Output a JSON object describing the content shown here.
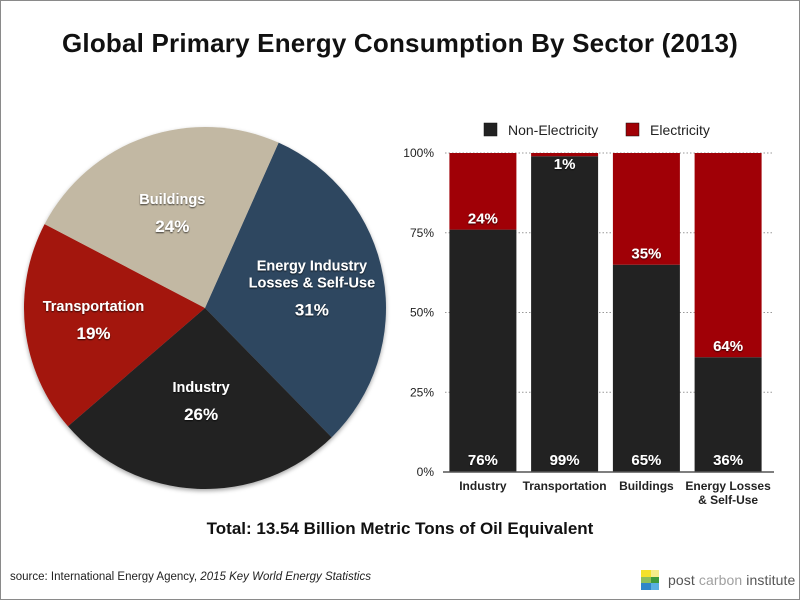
{
  "title": "Global Primary Energy Consumption By Sector (2013)",
  "total": "Total: 13.54 Billion Metric Tons of Oil Equivalent",
  "source": {
    "prefix": "source: International Energy Agency, ",
    "publication": "2015 Key World Energy Statistics"
  },
  "logo": {
    "icon": "post-carbon-logo-icon",
    "word1": "post ",
    "word2": "carbon",
    "word3": " institute"
  },
  "chart_data": [
    {
      "type": "pie",
      "title": "",
      "slices": [
        {
          "label": "Energy Industry Losses & Self-Use",
          "label_lines": [
            "Energy Industry",
            "Losses & Self-Use"
          ],
          "value": 31,
          "display": "31%",
          "color": "#2f4760"
        },
        {
          "label": "Industry",
          "label_lines": [
            "Industry"
          ],
          "value": 26,
          "display": "26%",
          "color": "#242424"
        },
        {
          "label": "Transportation",
          "label_lines": [
            "Transportation"
          ],
          "value": 19,
          "display": "19%",
          "color": "#a3130c"
        },
        {
          "label": "Buildings",
          "label_lines": [
            "Buildings"
          ],
          "value": 24,
          "display": "24%",
          "color": "#c2b8a3"
        }
      ],
      "start_angle_deg": 24,
      "direction": "clockwise",
      "unit": "%"
    },
    {
      "type": "bar",
      "stacked": true,
      "percent_stacked": true,
      "categories": [
        "Industry",
        "Transportation",
        "Buildings",
        "Energy Losses & Self-Use"
      ],
      "category_lines": [
        [
          "Industry"
        ],
        [
          "Transportation"
        ],
        [
          "Buildings"
        ],
        [
          "Energy Losses",
          "& Self-Use"
        ]
      ],
      "series": [
        {
          "name": "Non-Electricity",
          "values": [
            76,
            99,
            65,
            36
          ],
          "color": "#222222"
        },
        {
          "name": "Electricity",
          "values": [
            24,
            1,
            35,
            64
          ],
          "color": "#a00006"
        }
      ],
      "xlabel": "",
      "ylabel": "",
      "ylim": [
        0,
        100
      ],
      "yticks": [
        0,
        25,
        50,
        75,
        100
      ],
      "ytick_labels": [
        "0%",
        "25%",
        "50%",
        "75%",
        "100%"
      ],
      "grid": "dotted-horizontal",
      "legend": "top"
    }
  ]
}
